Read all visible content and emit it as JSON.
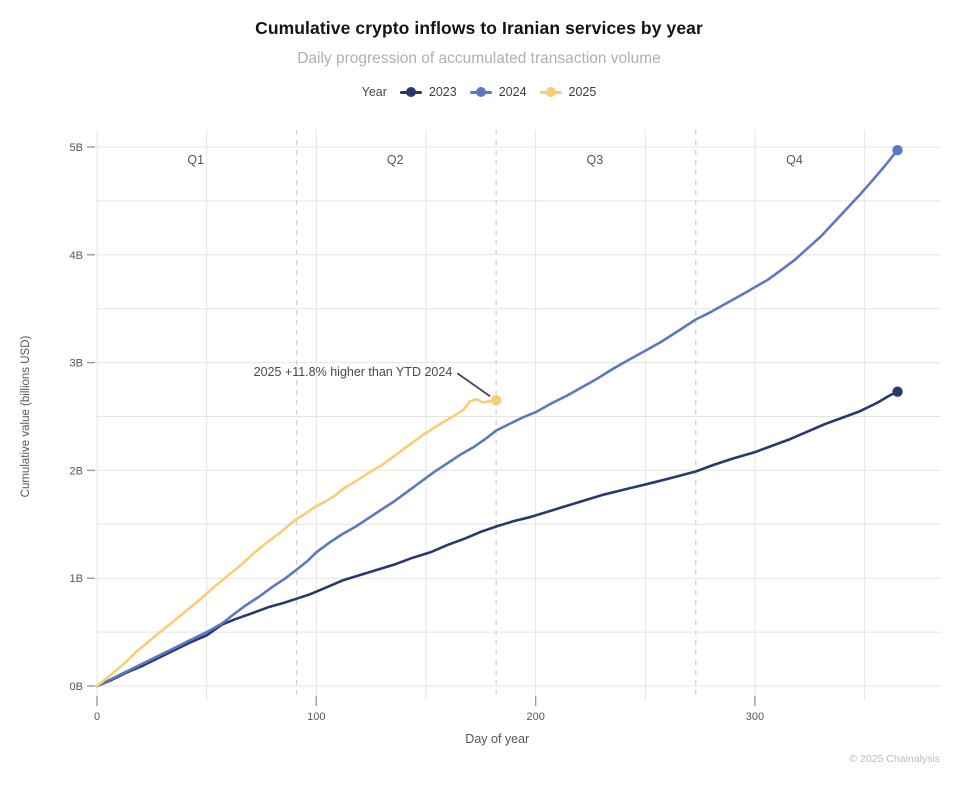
{
  "header": {
    "title": "Cumulative crypto inflows to Iranian services by year",
    "subtitle": "Daily progression of accumulated transaction volume"
  },
  "legend": {
    "title": "Year"
  },
  "footer": {
    "copyright": "© 2025 Chainalysis"
  },
  "chart_data": {
    "type": "line",
    "title": "Cumulative crypto inflows to Iranian services by year",
    "subtitle": "Daily progression of accumulated transaction volume",
    "xlabel": "Day of year",
    "ylabel": "Cumulative value (billions USD)",
    "xlim": [
      0,
      385
    ],
    "ylim": [
      0,
      5.2
    ],
    "x_ticks": [
      {
        "day": 0,
        "label": "0"
      },
      {
        "day": 100,
        "label": "100"
      },
      {
        "day": 200,
        "label": "200"
      },
      {
        "day": 300,
        "label": "300"
      }
    ],
    "y_ticks": [
      {
        "value": 0,
        "label": "0B"
      },
      {
        "value": 1,
        "label": "1B"
      },
      {
        "value": 2,
        "label": "2B"
      },
      {
        "value": 3,
        "label": "3B"
      },
      {
        "value": 4,
        "label": "4B"
      },
      {
        "value": 5,
        "label": "5B"
      }
    ],
    "grid": {
      "x_minor_step_days": 50,
      "x_minor_max_day": 350,
      "y_minor_step": 0.5,
      "y_minor_max": 5
    },
    "quarters": {
      "boundary_days": [
        91,
        182,
        273
      ],
      "labels": [
        {
          "text": "Q1",
          "mid_day": 45
        },
        {
          "text": "Q2",
          "mid_day": 136
        },
        {
          "text": "Q3",
          "mid_day": 227
        },
        {
          "text": "Q4",
          "mid_day": 318
        }
      ]
    },
    "annotation": {
      "text": "2025 +11.8% higher than YTD 2024",
      "text_end_x_day": 162,
      "text_value": 2.92,
      "target_day": 182,
      "target_value": 2.65
    },
    "colors": {
      "grid": "#e5e5e5",
      "quarter_dash": "#d2d2d2",
      "tick": "#9a9a9a",
      "axis_text": "#565656",
      "annotation": "#4a4a4c"
    },
    "series": [
      {
        "name": "2023",
        "color": "#27396d",
        "end_dot": true,
        "points": [
          [
            0,
            0
          ],
          [
            7,
            0.06
          ],
          [
            14,
            0.13
          ],
          [
            21,
            0.19
          ],
          [
            28,
            0.26
          ],
          [
            35,
            0.33
          ],
          [
            42,
            0.4
          ],
          [
            50,
            0.47
          ],
          [
            57,
            0.57
          ],
          [
            63,
            0.62
          ],
          [
            70,
            0.67
          ],
          [
            78,
            0.73
          ],
          [
            85,
            0.77
          ],
          [
            91,
            0.81
          ],
          [
            97,
            0.85
          ],
          [
            104,
            0.91
          ],
          [
            112,
            0.98
          ],
          [
            120,
            1.03
          ],
          [
            128,
            1.08
          ],
          [
            136,
            1.13
          ],
          [
            144,
            1.19
          ],
          [
            152,
            1.24
          ],
          [
            160,
            1.31
          ],
          [
            168,
            1.37
          ],
          [
            175,
            1.43
          ],
          [
            182,
            1.48
          ],
          [
            190,
            1.53
          ],
          [
            198,
            1.57
          ],
          [
            206,
            1.62
          ],
          [
            214,
            1.67
          ],
          [
            222,
            1.72
          ],
          [
            230,
            1.77
          ],
          [
            238,
            1.81
          ],
          [
            246,
            1.85
          ],
          [
            254,
            1.89
          ],
          [
            262,
            1.93
          ],
          [
            273,
            1.99
          ],
          [
            281,
            2.05
          ],
          [
            290,
            2.11
          ],
          [
            300,
            2.17
          ],
          [
            308,
            2.23
          ],
          [
            316,
            2.29
          ],
          [
            324,
            2.36
          ],
          [
            332,
            2.43
          ],
          [
            340,
            2.49
          ],
          [
            348,
            2.55
          ],
          [
            356,
            2.63
          ],
          [
            361,
            2.69
          ],
          [
            365,
            2.73
          ]
        ]
      },
      {
        "name": "2024",
        "color": "#5d78c2",
        "end_dot": true,
        "points": [
          [
            0,
            0
          ],
          [
            7,
            0.07
          ],
          [
            14,
            0.14
          ],
          [
            21,
            0.21
          ],
          [
            28,
            0.28
          ],
          [
            35,
            0.35
          ],
          [
            42,
            0.42
          ],
          [
            50,
            0.5
          ],
          [
            57,
            0.58
          ],
          [
            62,
            0.66
          ],
          [
            68,
            0.75
          ],
          [
            74,
            0.83
          ],
          [
            80,
            0.92
          ],
          [
            86,
            1.0
          ],
          [
            91,
            1.08
          ],
          [
            96,
            1.16
          ],
          [
            100,
            1.24
          ],
          [
            106,
            1.33
          ],
          [
            112,
            1.41
          ],
          [
            118,
            1.48
          ],
          [
            124,
            1.56
          ],
          [
            130,
            1.64
          ],
          [
            136,
            1.72
          ],
          [
            142,
            1.81
          ],
          [
            148,
            1.9
          ],
          [
            154,
            1.99
          ],
          [
            160,
            2.07
          ],
          [
            166,
            2.15
          ],
          [
            172,
            2.22
          ],
          [
            177,
            2.29
          ],
          [
            182,
            2.37
          ],
          [
            188,
            2.43
          ],
          [
            194,
            2.49
          ],
          [
            200,
            2.54
          ],
          [
            207,
            2.62
          ],
          [
            214,
            2.69
          ],
          [
            221,
            2.77
          ],
          [
            228,
            2.85
          ],
          [
            235,
            2.94
          ],
          [
            242,
            3.02
          ],
          [
            250,
            3.11
          ],
          [
            257,
            3.19
          ],
          [
            264,
            3.28
          ],
          [
            273,
            3.4
          ],
          [
            280,
            3.47
          ],
          [
            287,
            3.55
          ],
          [
            294,
            3.63
          ],
          [
            300,
            3.7
          ],
          [
            306,
            3.77
          ],
          [
            312,
            3.86
          ],
          [
            318,
            3.95
          ],
          [
            324,
            4.06
          ],
          [
            330,
            4.17
          ],
          [
            336,
            4.3
          ],
          [
            342,
            4.43
          ],
          [
            348,
            4.56
          ],
          [
            354,
            4.7
          ],
          [
            359,
            4.82
          ],
          [
            365,
            4.97
          ]
        ]
      },
      {
        "name": "2025",
        "color": "#f9cd74",
        "end_dot": true,
        "points": [
          [
            0,
            0
          ],
          [
            6,
            0.1
          ],
          [
            12,
            0.2
          ],
          [
            18,
            0.32
          ],
          [
            24,
            0.42
          ],
          [
            30,
            0.52
          ],
          [
            36,
            0.62
          ],
          [
            42,
            0.72
          ],
          [
            48,
            0.82
          ],
          [
            54,
            0.93
          ],
          [
            60,
            1.03
          ],
          [
            66,
            1.13
          ],
          [
            72,
            1.24
          ],
          [
            78,
            1.34
          ],
          [
            84,
            1.43
          ],
          [
            91,
            1.55
          ],
          [
            95,
            1.6
          ],
          [
            100,
            1.67
          ],
          [
            104,
            1.71
          ],
          [
            108,
            1.76
          ],
          [
            113,
            1.84
          ],
          [
            118,
            1.9
          ],
          [
            124,
            1.98
          ],
          [
            130,
            2.05
          ],
          [
            136,
            2.14
          ],
          [
            142,
            2.23
          ],
          [
            148,
            2.32
          ],
          [
            154,
            2.4
          ],
          [
            159,
            2.46
          ],
          [
            163,
            2.51
          ],
          [
            167,
            2.56
          ],
          [
            170,
            2.64
          ],
          [
            173,
            2.66
          ],
          [
            176,
            2.63
          ],
          [
            179,
            2.64
          ],
          [
            182,
            2.65
          ]
        ]
      }
    ]
  }
}
